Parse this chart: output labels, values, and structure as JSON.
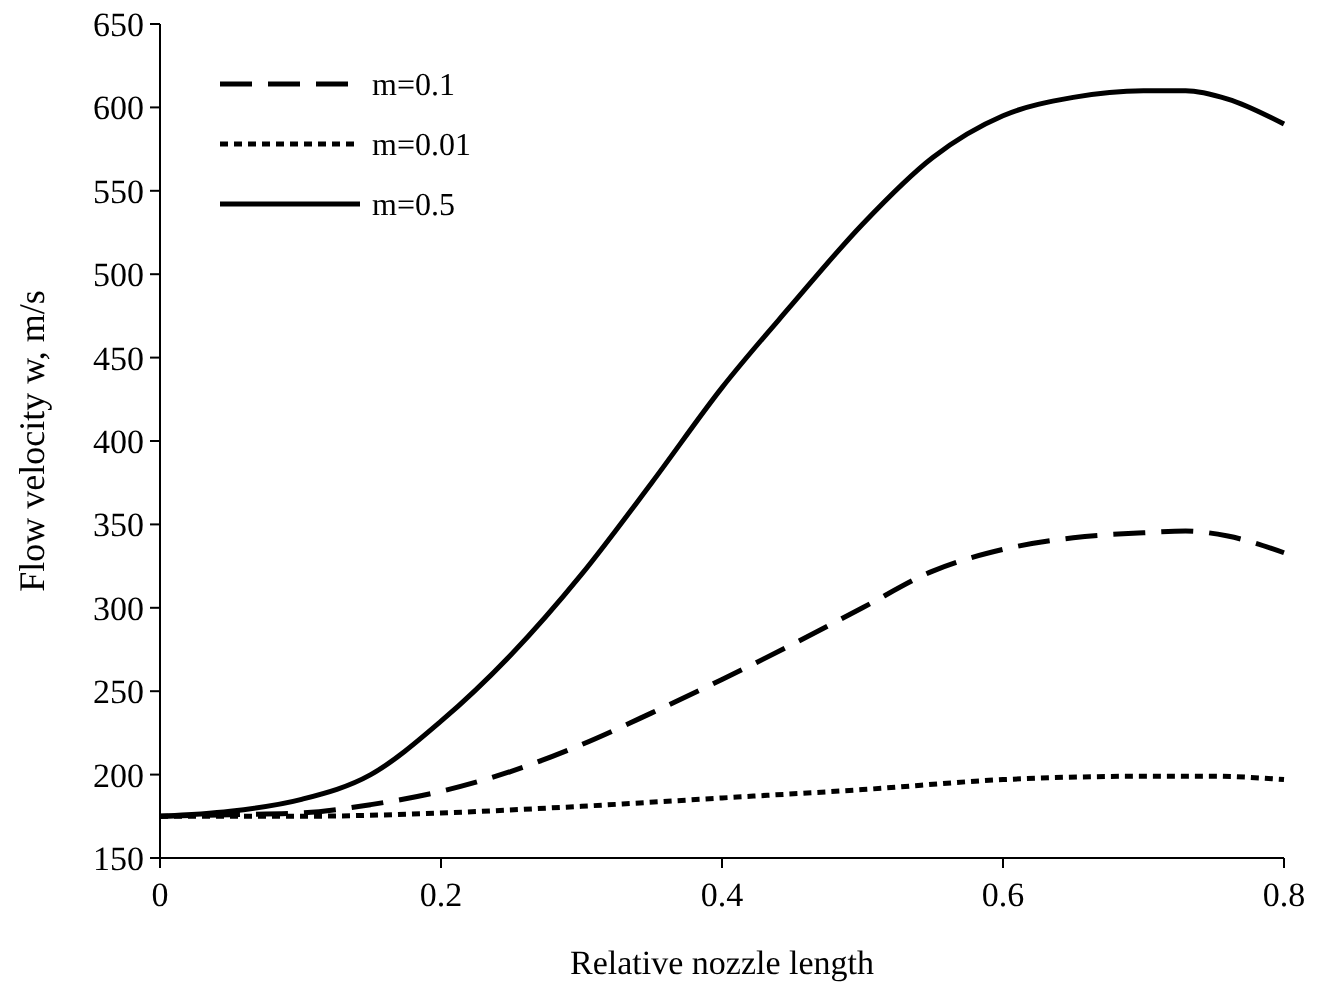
{
  "chart_data": {
    "type": "line",
    "xlabel": "Relative nozzle length",
    "ylabel": "Flow velocity w, m/s",
    "xlim": [
      0,
      0.8
    ],
    "ylim": [
      150,
      650
    ],
    "xticks": [
      0,
      0.2,
      0.4,
      0.6,
      0.8
    ],
    "yticks": [
      150,
      200,
      250,
      300,
      350,
      400,
      450,
      500,
      550,
      600,
      650
    ],
    "grid": false,
    "legend": "top left",
    "series": [
      {
        "name": "m=0.1",
        "color": "#000000",
        "line_style": "dashed",
        "x": [
          0,
          0.05,
          0.1,
          0.15,
          0.2,
          0.25,
          0.3,
          0.35,
          0.4,
          0.45,
          0.5,
          0.55,
          0.6,
          0.65,
          0.7,
          0.73,
          0.76,
          0.8
        ],
        "values": [
          175,
          176,
          177,
          182,
          190,
          202,
          218,
          237,
          257,
          278,
          300,
          322,
          335,
          342,
          345,
          346,
          343,
          333
        ]
      },
      {
        "name": "m=0.01",
        "color": "#000000",
        "line_style": "dotted",
        "x": [
          0,
          0.1,
          0.2,
          0.3,
          0.4,
          0.5,
          0.6,
          0.7,
          0.75,
          0.8
        ],
        "values": [
          175,
          175,
          177,
          181,
          186,
          191,
          197,
          199,
          199,
          197
        ]
      },
      {
        "name": "m=0.5",
        "color": "#000000",
        "line_style": "solid",
        "x": [
          0,
          0.05,
          0.1,
          0.15,
          0.2,
          0.25,
          0.3,
          0.35,
          0.4,
          0.45,
          0.5,
          0.55,
          0.6,
          0.65,
          0.7,
          0.73,
          0.76,
          0.8
        ],
        "values": [
          175,
          178,
          185,
          200,
          232,
          272,
          320,
          375,
          432,
          482,
          530,
          570,
          595,
          606,
          610,
          610,
          605,
          590
        ]
      }
    ]
  }
}
